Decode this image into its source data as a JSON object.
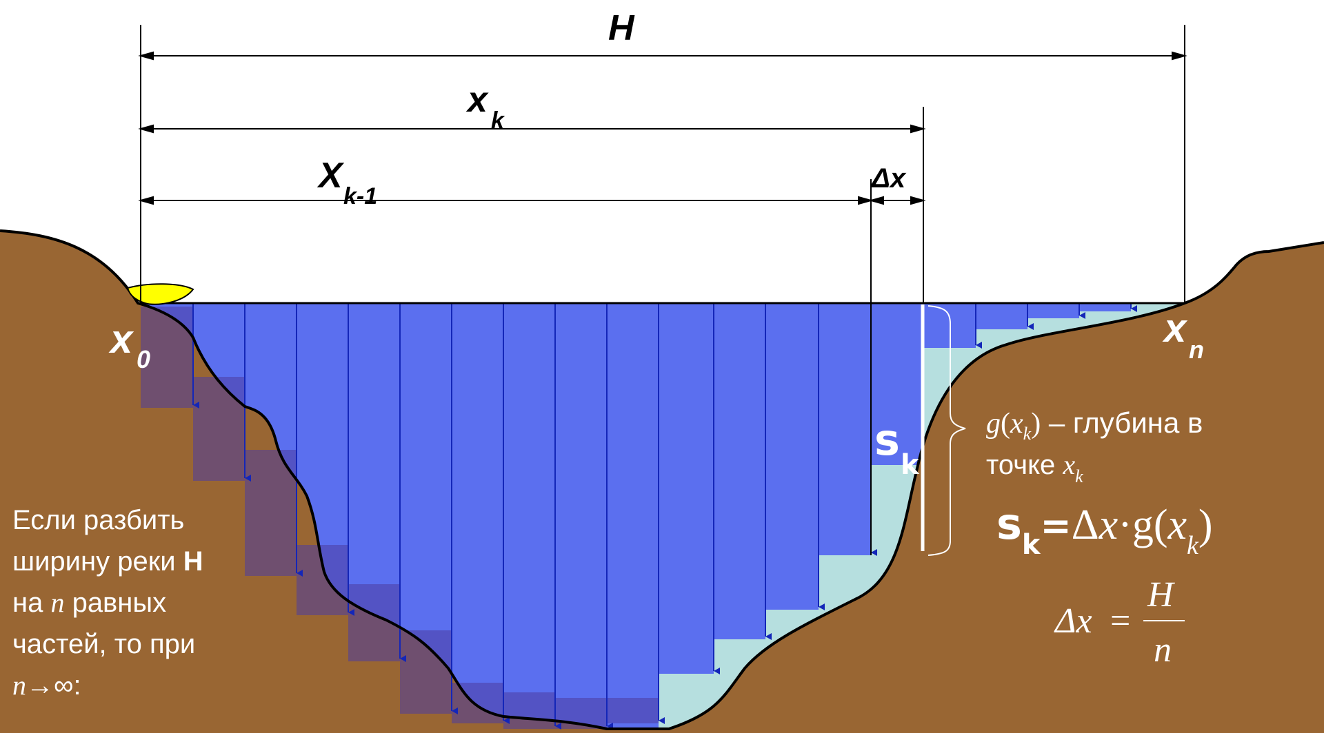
{
  "colors": {
    "background": "#ffffff",
    "ground": "#996633",
    "water": "#5b6fef",
    "shallow_water": "#b6dfdf",
    "deep_step": "#4d3da0",
    "depth_arrows": "#1426b8",
    "boat": "#ffff00"
  },
  "labels": {
    "H": "H",
    "xk_main": "x",
    "xk_sub": "k",
    "xk1_main": "X",
    "xk1_sub": "k-1",
    "dx": "Δx",
    "x0_main": "x",
    "x0_sub": "0",
    "xn_main": "x",
    "xn_sub": "n",
    "sk_main": "s",
    "sk_sub": "k"
  },
  "left_text": {
    "line1": "Если разбить",
    "line2_pre": "ширину реки ",
    "line2_bold": "H",
    "line3_pre": "на ",
    "line3_var": "n",
    "line3_post": " равных",
    "line4": "частей, то при",
    "line5_var": "n",
    "line5_post": "→∞:"
  },
  "right_text": {
    "g": "g",
    "g_open": "(",
    "g_x": "x",
    "g_sub": "k",
    "g_close": ")",
    "g_desc": " – глубина в",
    "point_pre": "точке ",
    "point_var": "x",
    "point_sub": "k"
  },
  "formula_sk": {
    "s": "s",
    "sub": "k",
    "eq": "=",
    "delta": "Δ",
    "x": "x",
    "dot": "·",
    "g": "g",
    "open": "(",
    "x2": "x",
    "sub2": "k",
    "close": ")"
  },
  "formula_dx": {
    "lhs": "Δx",
    "eq": "=",
    "num": "H",
    "den": "n"
  }
}
